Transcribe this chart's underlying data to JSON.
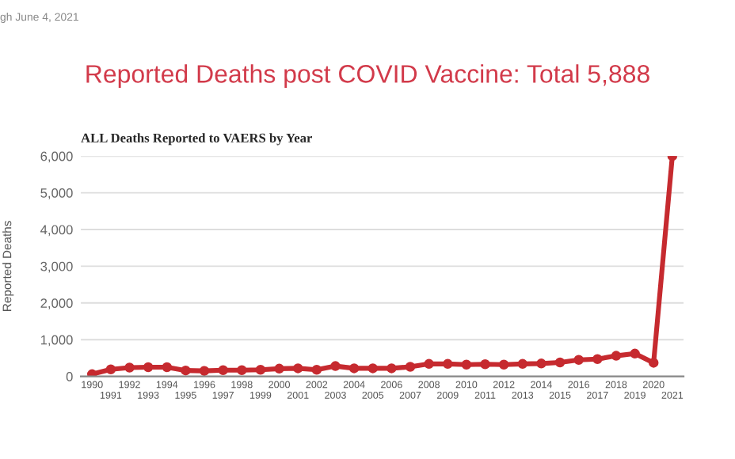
{
  "chart_data": {
    "type": "line",
    "title": "Reported Deaths post COVID Vaccine: Total 5,888",
    "subtitle": "ALL Deaths Reported to VAERS by Year",
    "ylabel": "Reported Deaths",
    "annotations": [
      "gh June 4, 2021"
    ],
    "categories": [
      "1990",
      "1991",
      "1992",
      "1993",
      "1994",
      "1995",
      "1996",
      "1997",
      "1998",
      "1999",
      "2000",
      "2001",
      "2002",
      "2003",
      "2004",
      "2005",
      "2006",
      "2007",
      "2008",
      "2009",
      "2010",
      "2011",
      "2012",
      "2013",
      "2014",
      "2015",
      "2016",
      "2017",
      "2018",
      "2019",
      "2020",
      "2021"
    ],
    "series": [
      {
        "color": "#c62a2f",
        "values": [
          60,
          190,
          240,
          250,
          250,
          160,
          150,
          170,
          170,
          180,
          210,
          220,
          180,
          280,
          220,
          220,
          220,
          260,
          340,
          340,
          320,
          330,
          320,
          340,
          350,
          380,
          450,
          470,
          560,
          620,
          370,
          6000
        ]
      }
    ],
    "ylim": [
      0,
      6000
    ],
    "yticks": [
      {
        "value": 0,
        "label": "0"
      },
      {
        "value": 1000,
        "label": "1,000"
      },
      {
        "value": 2000,
        "label": "2,000"
      },
      {
        "value": 3000,
        "label": "3,000"
      },
      {
        "value": 4000,
        "label": "4,000"
      },
      {
        "value": 5000,
        "label": "5,000"
      },
      {
        "value": 6000,
        "label": "6,000"
      }
    ],
    "grid": "y",
    "marker": "circle",
    "line_style": "solid"
  }
}
